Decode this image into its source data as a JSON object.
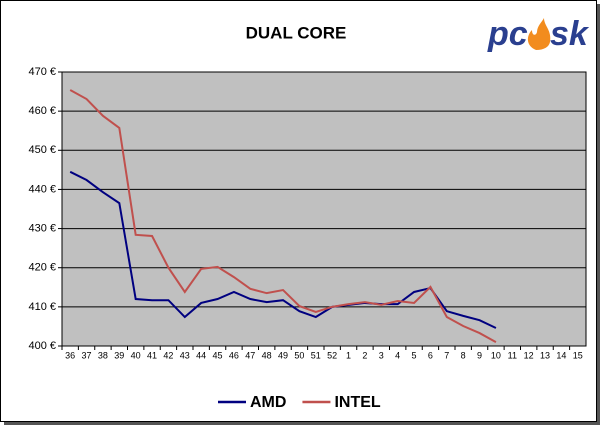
{
  "logo": [
    "pc",
    "sk"
  ],
  "chart_data": {
    "type": "line",
    "title": "DUAL CORE",
    "categories": [
      "36",
      "37",
      "38",
      "39",
      "40",
      "41",
      "42",
      "43",
      "44",
      "45",
      "46",
      "47",
      "48",
      "49",
      "50",
      "51",
      "52",
      "1",
      "2",
      "3",
      "4",
      "5",
      "6",
      "7",
      "8",
      "9",
      "10",
      "11",
      "12",
      "13",
      "14",
      "15"
    ],
    "series": [
      {
        "name": "AMD",
        "color": "#000080",
        "values": [
          444.5,
          442.4,
          439.3,
          436.5,
          412.0,
          411.7,
          411.7,
          407.4,
          411.0,
          412.0,
          413.8,
          412.0,
          411.2,
          411.7,
          408.9,
          407.4,
          410.0,
          410.5,
          411.0,
          410.7,
          410.7,
          413.8,
          414.8,
          408.9,
          407.7,
          406.6,
          404.6,
          null,
          null,
          null,
          null,
          null
        ]
      },
      {
        "name": "INTEL",
        "color": "#c0504d",
        "values": [
          465.4,
          463.1,
          458.8,
          455.7,
          428.4,
          428.1,
          420.0,
          413.8,
          419.7,
          420.2,
          417.6,
          414.6,
          413.5,
          414.3,
          410.2,
          408.7,
          410.0,
          410.7,
          411.2,
          410.5,
          411.5,
          411.0,
          415.1,
          407.4,
          405.1,
          403.3,
          401.0,
          null,
          null,
          null,
          null,
          null
        ]
      }
    ],
    "ylim": [
      400,
      470
    ],
    "yticks": [
      {
        "value": 400,
        "label": "400 €"
      },
      {
        "value": 410,
        "label": "410 €"
      },
      {
        "value": 420,
        "label": "420 €"
      },
      {
        "value": 430,
        "label": "430 €"
      },
      {
        "value": 440,
        "label": "440 €"
      },
      {
        "value": 450,
        "label": "450 €"
      },
      {
        "value": 460,
        "label": "460 €"
      },
      {
        "value": 470,
        "label": "470 €"
      }
    ],
    "grid": true,
    "plot_background": "#c0c0c0",
    "legend": "bottom"
  }
}
